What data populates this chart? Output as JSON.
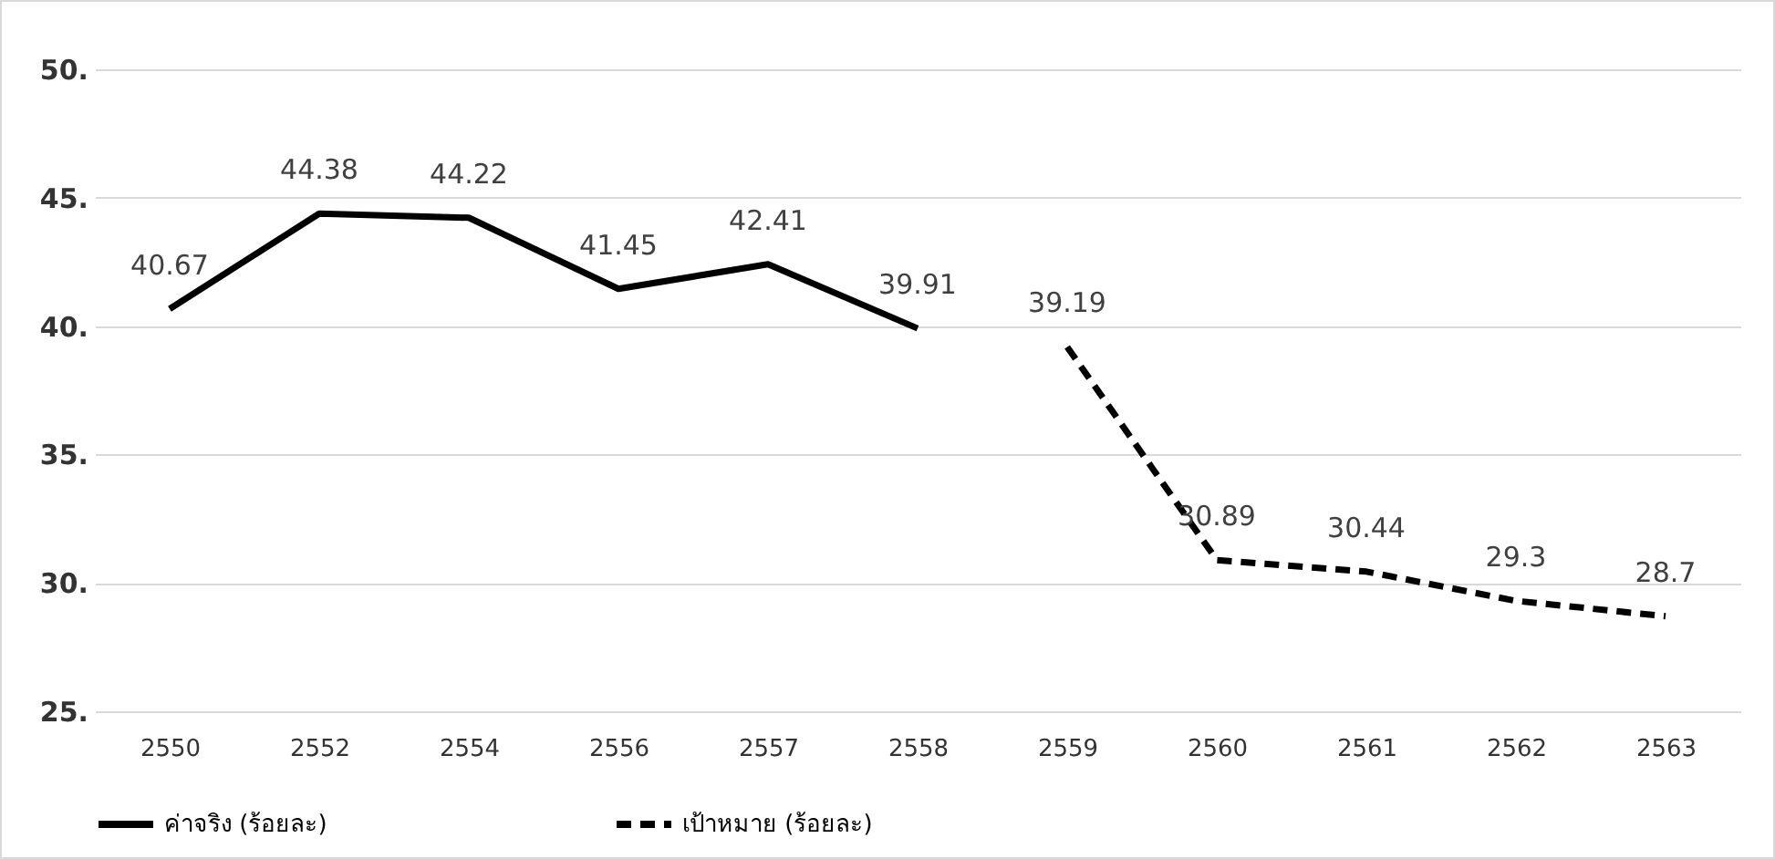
{
  "chart_data": {
    "type": "line",
    "categories": [
      "2550",
      "2552",
      "2554",
      "2556",
      "2557",
      "2558",
      "2559",
      "2560",
      "2561",
      "2562",
      "2563"
    ],
    "series": [
      {
        "name": "ค่าจริง (ร้อยละ)",
        "color": "#000000",
        "line_style": "solid",
        "values": [
          40.67,
          44.38,
          44.22,
          41.45,
          42.41,
          39.91,
          null,
          null,
          null,
          null,
          null
        ]
      },
      {
        "name": "เป้าหมาย (ร้อยละ)",
        "color": "#000000",
        "line_style": "dashed",
        "values": [
          null,
          null,
          null,
          null,
          null,
          null,
          39.19,
          30.89,
          30.44,
          29.3,
          28.7
        ]
      }
    ],
    "ylim": [
      25,
      50
    ],
    "yticks": [
      {
        "value": 25,
        "label": "25."
      },
      {
        "value": 30,
        "label": "30."
      },
      {
        "value": 35,
        "label": "35."
      },
      {
        "value": 40,
        "label": "40."
      },
      {
        "value": 45,
        "label": "45."
      },
      {
        "value": 50,
        "label": "50."
      }
    ],
    "grid": "y",
    "legend": "bottom",
    "data_labels": true,
    "marker": "none"
  }
}
